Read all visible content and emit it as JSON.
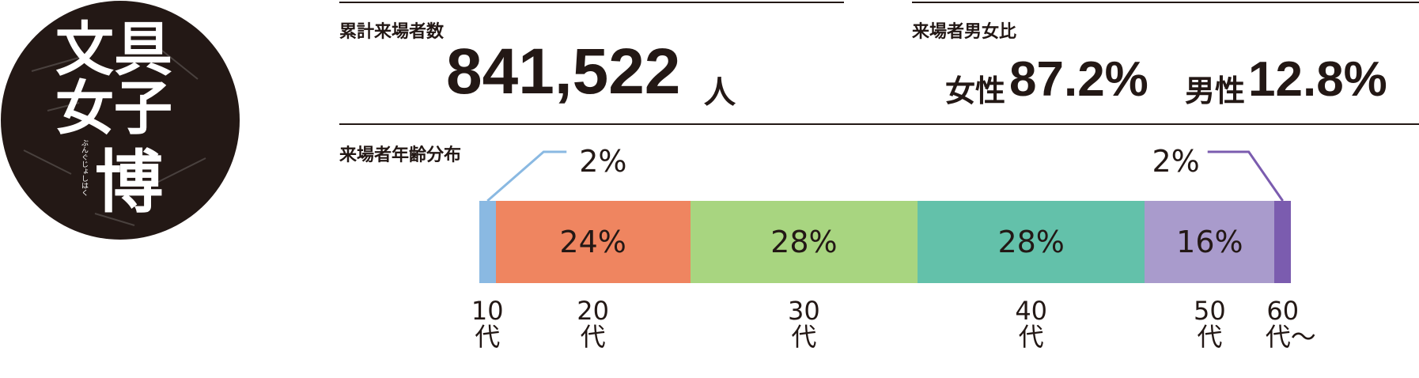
{
  "logo": {
    "lines": [
      "文具",
      "女子",
      "博"
    ],
    "ruby": "ぶんぐじょしはく"
  },
  "visitors": {
    "title": "累計来場者数",
    "value": "841,522",
    "unit": "人"
  },
  "gender": {
    "title": "来場者男女比",
    "female_label": "女性",
    "female": "87.2%",
    "male_label": "男性",
    "male": "12.8%"
  },
  "age_distribution": {
    "title": "来場者年齢分布",
    "segments": [
      {
        "label": "10代",
        "value": 2,
        "value_label": "2%",
        "color": "#8ab9e2"
      },
      {
        "label": "20代",
        "value": 24,
        "value_label": "24%",
        "color": "#ef8560"
      },
      {
        "label": "30代",
        "value": 28,
        "value_label": "28%",
        "color": "#a8d580"
      },
      {
        "label": "40代",
        "value": 28,
        "value_label": "28%",
        "color": "#63c1aa"
      },
      {
        "label": "50代",
        "value": 16,
        "value_label": "16%",
        "color": "#a99bcc"
      },
      {
        "label": "60代〜",
        "value": 2,
        "value_label": "2%",
        "color": "#7b5caf"
      }
    ]
  }
}
